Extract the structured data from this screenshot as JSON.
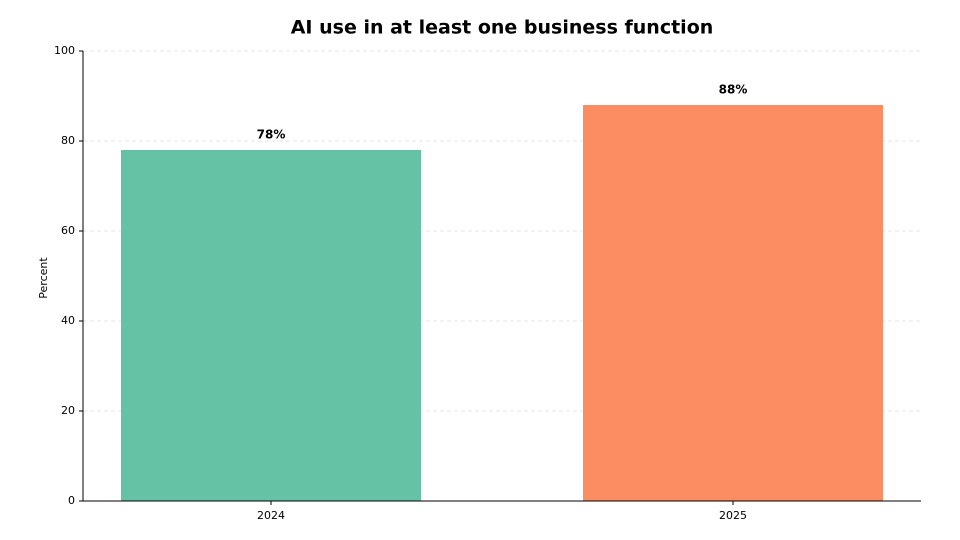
{
  "chart_data": {
    "type": "bar",
    "title": "AI use in at least one business function",
    "y_label": "Percent",
    "categories": [
      "2024",
      "2025"
    ],
    "values": [
      78,
      88
    ],
    "value_labels": [
      "78%",
      "88%"
    ],
    "colors": [
      "#66c2a5",
      "#fc8d62"
    ],
    "ylim": [
      0,
      100
    ],
    "yticks": [
      0,
      20,
      40,
      60,
      80,
      100
    ],
    "grid": true
  }
}
